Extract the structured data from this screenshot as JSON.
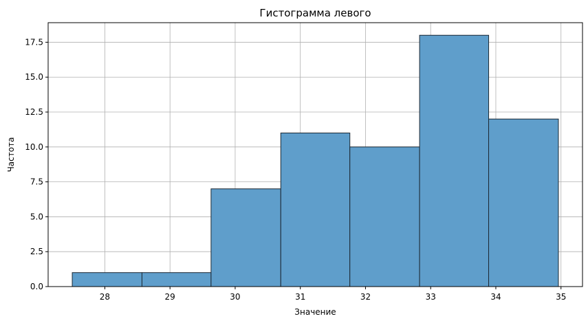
{
  "chart_data": {
    "type": "bar",
    "title": "Гистограмма левого",
    "xlabel": "Значение",
    "ylabel": "Частота",
    "bins": [
      {
        "x0": 27.5,
        "x1": 28.57,
        "value": 1
      },
      {
        "x0": 28.57,
        "x1": 29.63,
        "value": 1
      },
      {
        "x0": 29.63,
        "x1": 30.7,
        "value": 7
      },
      {
        "x0": 30.7,
        "x1": 31.76,
        "value": 11
      },
      {
        "x0": 31.76,
        "x1": 32.83,
        "value": 10
      },
      {
        "x0": 32.83,
        "x1": 33.89,
        "value": 18
      },
      {
        "x0": 33.89,
        "x1": 34.96,
        "value": 12
      }
    ],
    "xlim": [
      27.13,
      35.33
    ],
    "ylim": [
      0,
      18.9
    ],
    "xticks": [
      28,
      29,
      30,
      31,
      32,
      33,
      34,
      35
    ],
    "yticks": [
      0.0,
      2.5,
      5.0,
      7.5,
      10.0,
      12.5,
      15.0,
      17.5
    ],
    "ytick_labels": [
      "0.0",
      "2.5",
      "5.0",
      "7.5",
      "10.0",
      "12.5",
      "15.0",
      "17.5"
    ],
    "grid": true,
    "bar_color": "#5f9ecb",
    "edge_color": "#1b2833"
  }
}
